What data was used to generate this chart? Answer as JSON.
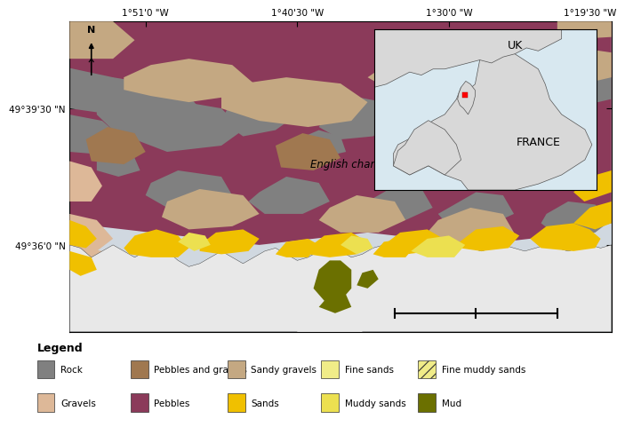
{
  "xticks": [
    "1°51'0 \"W",
    "1°40'30 \"W",
    "1°30'0 \"W",
    "1°19'30 \"W"
  ],
  "yticks_left": [
    "49°39'30 \"N",
    "49°36'0 \"N"
  ],
  "colors": {
    "rock": "#808080",
    "pebbles_gravels": "#a07850",
    "sandy_gravels": "#c4a882",
    "fine_sands": "#f0ec88",
    "gravels": "#ddb898",
    "pebbles": "#8b3a5a",
    "sands": "#f0c000",
    "muddy_sands": "#ece050",
    "mud": "#6b7000",
    "sea_bg": "#d0d8e0",
    "land": "#e8e8e8",
    "inset_bg": "#ffffff",
    "inset_sea": "#d8e8f0",
    "inset_land": "#d8d8d8"
  },
  "legend": [
    {
      "label": "Rock",
      "color": "#808080",
      "hatch": null,
      "row": 1,
      "col": 0
    },
    {
      "label": "Pebbles and gravels",
      "color": "#a07850",
      "hatch": null,
      "row": 1,
      "col": 1
    },
    {
      "label": "Sandy gravels",
      "color": "#c4a882",
      "hatch": null,
      "row": 1,
      "col": 2
    },
    {
      "label": "Fine sands",
      "color": "#f0ec88",
      "hatch": null,
      "row": 1,
      "col": 3
    },
    {
      "label": "Fine muddy sands",
      "color": "#f0ec88",
      "hatch": "///",
      "row": 1,
      "col": 4
    },
    {
      "label": "Gravels",
      "color": "#ddb898",
      "hatch": null,
      "row": 2,
      "col": 0
    },
    {
      "label": "Pebbles",
      "color": "#8b3a5a",
      "hatch": null,
      "row": 2,
      "col": 1
    },
    {
      "label": "Sands",
      "color": "#f0c000",
      "hatch": null,
      "row": 2,
      "col": 2
    },
    {
      "label": "Muddy sands",
      "color": "#ece050",
      "hatch": null,
      "row": 2,
      "col": 3
    },
    {
      "label": "Mud",
      "color": "#6b7000",
      "hatch": null,
      "row": 2,
      "col": 4
    }
  ]
}
